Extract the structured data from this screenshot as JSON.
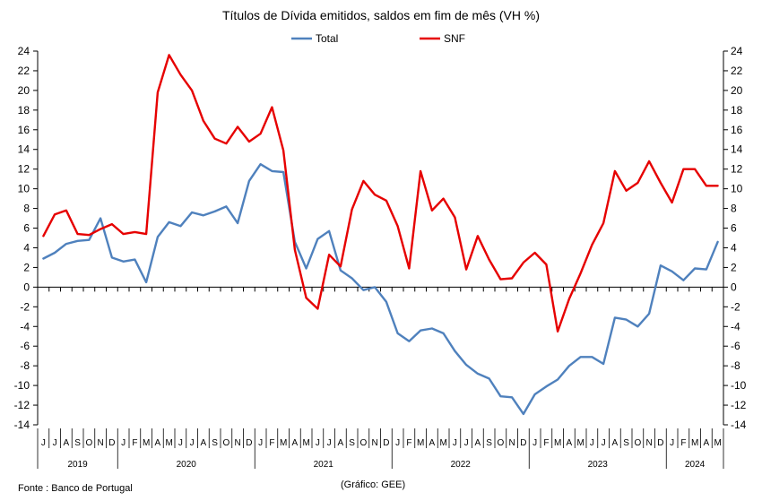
{
  "chart_data": {
    "type": "line",
    "title": "Títulos de Dívida emitidos, saldos em fim de mês  (VH %)",
    "legend_position": "top-center",
    "ylim": [
      -14,
      24
    ],
    "ytick_step": 2,
    "grid": false,
    "y_axes": "left-and-right",
    "x": [
      "2019-06",
      "2019-07",
      "2019-08",
      "2019-09",
      "2019-10",
      "2019-11",
      "2019-12",
      "2020-01",
      "2020-02",
      "2020-03",
      "2020-04",
      "2020-05",
      "2020-06",
      "2020-07",
      "2020-08",
      "2020-09",
      "2020-10",
      "2020-11",
      "2020-12",
      "2021-01",
      "2021-02",
      "2021-03",
      "2021-04",
      "2021-05",
      "2021-06",
      "2021-07",
      "2021-08",
      "2021-09",
      "2021-10",
      "2021-11",
      "2021-12",
      "2022-01",
      "2022-02",
      "2022-03",
      "2022-04",
      "2022-05",
      "2022-06",
      "2022-07",
      "2022-08",
      "2022-09",
      "2022-10",
      "2022-11",
      "2022-12",
      "2023-01",
      "2023-02",
      "2023-03",
      "2023-04",
      "2023-05",
      "2023-06",
      "2023-07",
      "2023-08",
      "2023-09",
      "2023-10",
      "2023-11",
      "2023-12",
      "2024-01",
      "2024-02",
      "2024-03",
      "2024-04",
      "2024-05"
    ],
    "month_labels": [
      "J",
      "J",
      "A",
      "S",
      "O",
      "N",
      "D",
      "J",
      "F",
      "M",
      "A",
      "M",
      "J",
      "J",
      "A",
      "S",
      "O",
      "N",
      "D",
      "J",
      "F",
      "M",
      "A",
      "M",
      "J",
      "J",
      "A",
      "S",
      "O",
      "N",
      "D",
      "J",
      "F",
      "M",
      "A",
      "M",
      "J",
      "J",
      "A",
      "S",
      "O",
      "N",
      "D",
      "J",
      "F",
      "M",
      "A",
      "M",
      "J",
      "J",
      "A",
      "S",
      "O",
      "N",
      "D",
      "J",
      "F",
      "M",
      "A",
      "M"
    ],
    "years": [
      {
        "label": "2019",
        "start": 0,
        "end": 6
      },
      {
        "label": "2020",
        "start": 7,
        "end": 18
      },
      {
        "label": "2021",
        "start": 19,
        "end": 30
      },
      {
        "label": "2022",
        "start": 31,
        "end": 42
      },
      {
        "label": "2023",
        "start": 43,
        "end": 54
      },
      {
        "label": "2024",
        "start": 55,
        "end": 59
      }
    ],
    "series": [
      {
        "name": "Total",
        "color": "#4F81BD",
        "values": [
          2.9,
          3.5,
          4.4,
          4.7,
          4.8,
          7.0,
          3.0,
          2.6,
          2.8,
          0.5,
          5.1,
          6.6,
          6.2,
          7.6,
          7.3,
          7.7,
          8.2,
          6.5,
          10.8,
          12.5,
          11.8,
          11.7,
          4.6,
          1.9,
          4.9,
          5.7,
          1.7,
          0.9,
          -0.3,
          0.0,
          -1.5,
          -4.7,
          -5.5,
          -4.4,
          -4.2,
          -4.7,
          -6.5,
          -7.9,
          -8.8,
          -9.3,
          -11.1,
          -11.2,
          -12.9,
          -10.9,
          -10.1,
          -9.4,
          -8.0,
          -7.1,
          -7.1,
          -7.8,
          -3.1,
          -3.3,
          -4.0,
          -2.7,
          2.2,
          1.6,
          0.7,
          1.9,
          1.8,
          4.6
        ]
      },
      {
        "name": "SNF",
        "color": "#E60000",
        "values": [
          5.2,
          7.4,
          7.8,
          5.4,
          5.3,
          5.9,
          6.4,
          5.4,
          5.6,
          5.4,
          19.8,
          23.6,
          21.6,
          20.0,
          16.9,
          15.1,
          14.6,
          16.3,
          14.8,
          15.6,
          18.3,
          13.9,
          3.8,
          -1.1,
          -2.2,
          3.3,
          2.1,
          7.9,
          10.8,
          9.4,
          8.8,
          6.2,
          1.9,
          11.8,
          7.8,
          9.0,
          7.1,
          1.8,
          5.2,
          2.8,
          0.8,
          0.9,
          2.5,
          3.5,
          2.3,
          -4.5,
          -1.2,
          1.4,
          4.3,
          6.5,
          11.8,
          9.8,
          10.6,
          12.8,
          10.6,
          8.6,
          12.0,
          12.0,
          10.3,
          10.3
        ]
      }
    ]
  },
  "footer": {
    "source": "Fonte : Banco de Portugal",
    "credit": "(Gráfico: GEE)"
  }
}
